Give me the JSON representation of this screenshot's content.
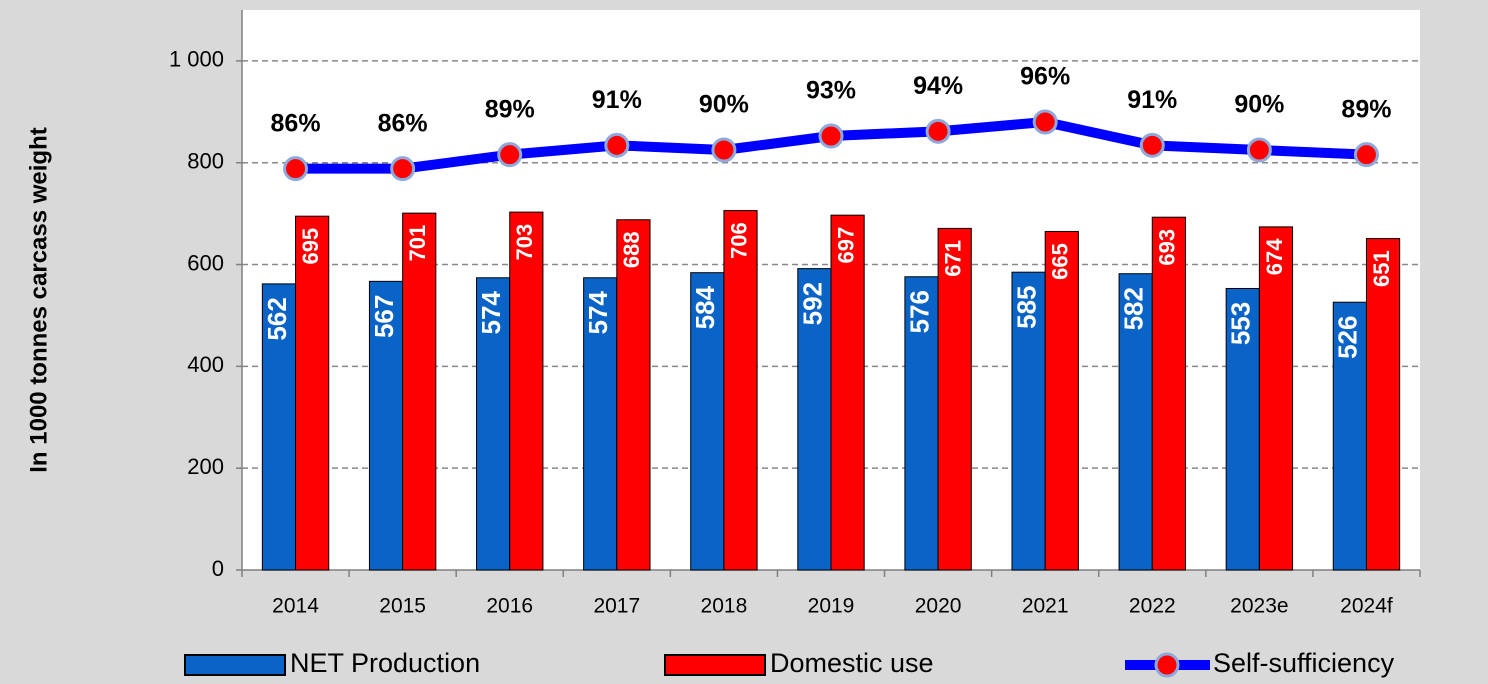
{
  "chart_data": {
    "type": "bar",
    "y_label": "In 1000 tonnes  carcass weight",
    "categories": [
      "2014",
      "2015",
      "2016",
      "2017",
      "2018",
      "2019",
      "2020",
      "2021",
      "2022",
      "2023e",
      "2024f"
    ],
    "series": [
      {
        "name": "NET Production",
        "color": "#0a64c8",
        "values": [
          562,
          567,
          574,
          574,
          584,
          592,
          576,
          585,
          582,
          553,
          526
        ]
      },
      {
        "name": "Domestic use",
        "color": "#ff0000",
        "values": [
          695,
          701,
          703,
          688,
          706,
          697,
          671,
          665,
          693,
          674,
          651
        ]
      },
      {
        "name": "Self-sufficiency",
        "type": "line",
        "axis": "y2",
        "color": "#0000ff",
        "marker_color": "#ff0000",
        "values": [
          86,
          86,
          89,
          91,
          90,
          93,
          94,
          96,
          91,
          90,
          89
        ],
        "value_labels": [
          "86%",
          "86%",
          "89%",
          "91%",
          "90%",
          "93%",
          "94%",
          "96%",
          "91%",
          "90%",
          "89%"
        ]
      }
    ],
    "ylim": [
      0,
      1100
    ],
    "yticks": [
      0,
      200,
      400,
      600,
      800,
      {
        "value": 1000,
        "label": "1 000"
      }
    ],
    "y2lim": [
      0,
      120
    ],
    "grid": true,
    "legend": "bottom"
  }
}
